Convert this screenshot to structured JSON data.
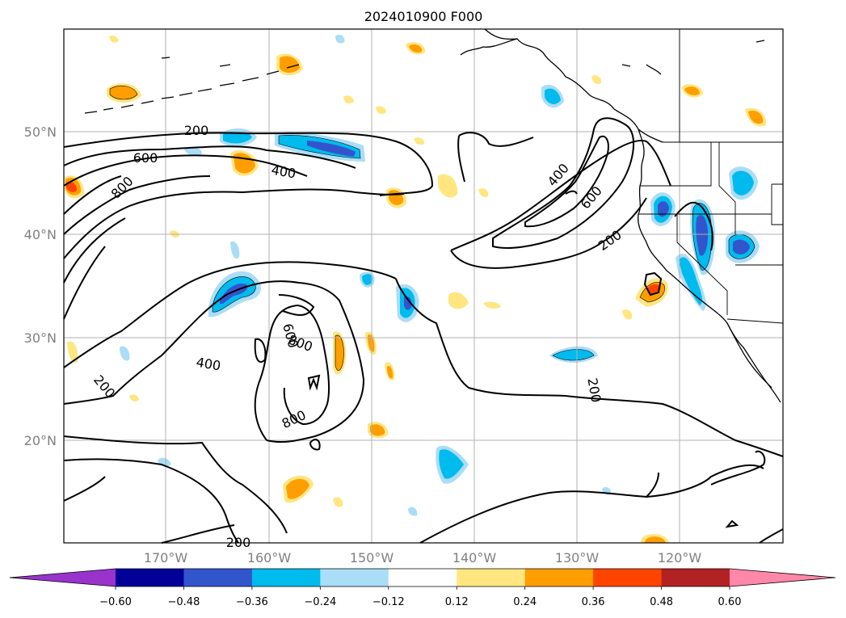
{
  "title": "2024010900 F000",
  "latitude_labels": [
    "50°N",
    "40°N",
    "30°N",
    "20°N"
  ],
  "longitude_labels": [
    "170°W",
    "160°W",
    "150°W",
    "140°W",
    "130°W",
    "120°W"
  ],
  "contour_labels": [
    "200",
    "600",
    "800",
    "400",
    "400",
    "600",
    "200",
    "400",
    "800",
    "600",
    "800",
    "400",
    "200",
    "200",
    "800",
    "200"
  ],
  "colorbar": {
    "ticks": [
      "−0.60",
      "−0.48",
      "−0.36",
      "−0.24",
      "−0.12",
      "0.12",
      "0.24",
      "0.36",
      "0.48",
      "0.60"
    ],
    "colors": [
      "#9933cc",
      "#000099",
      "#3355cc",
      "#00bbee",
      "#aaddf6",
      "#ffffff",
      "#ffe680",
      "#ff9e00",
      "#ff4400",
      "#b22222",
      "#ff88aa"
    ]
  },
  "fill_colors": {
    "light_blue": "#aaddf6",
    "cyan": "#00bbee",
    "blue": "#3355cc",
    "yellow": "#ffe680",
    "orange": "#ff9e00",
    "red": "#ff4400"
  }
}
